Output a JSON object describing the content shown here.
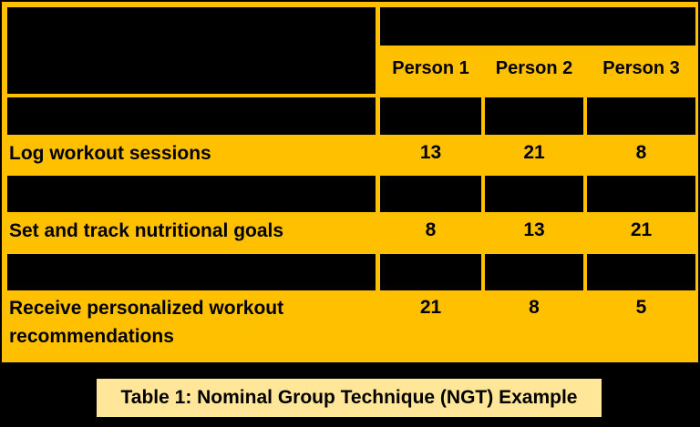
{
  "table": {
    "columns": [
      "Person 1",
      "Person 2",
      "Person 3"
    ],
    "rows": [
      {
        "label": "Log workout sessions",
        "values": [
          "13",
          "21",
          "8"
        ]
      },
      {
        "label": "Set and track nutritional goals",
        "values": [
          "8",
          "13",
          "21"
        ]
      },
      {
        "label": "Receive personalized workout recommendations",
        "values": [
          "21",
          "8",
          "5"
        ]
      }
    ],
    "caption": "Table 1: Nominal Group Technique (NGT) Example"
  },
  "colors": {
    "gold": "#FFC000",
    "black": "#000000",
    "caption_bg": "#FFE699"
  }
}
